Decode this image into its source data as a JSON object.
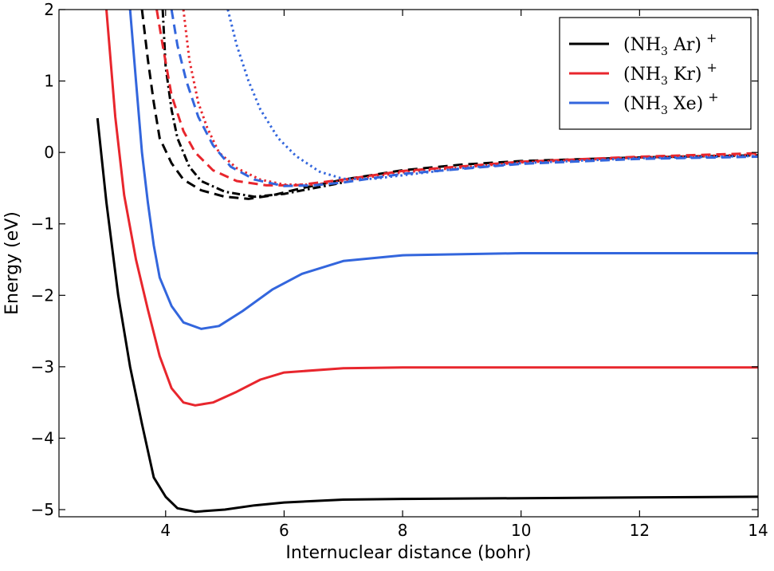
{
  "chart_data": {
    "type": "line",
    "title": "",
    "xlabel": "Internuclear distance (bohr)",
    "ylabel": "Energy (eV)",
    "xlim": [
      2.2,
      14
    ],
    "ylim": [
      -5.1,
      2
    ],
    "x_ticks": [
      4,
      6,
      8,
      10,
      12,
      14
    ],
    "x_tick_labels": [
      "4",
      "6",
      "8",
      "10",
      "12",
      "14"
    ],
    "y_ticks": [
      -5,
      -4,
      -3,
      -2,
      -1,
      0,
      1,
      2
    ],
    "y_tick_labels": [
      "−5",
      "−4",
      "−3",
      "−2",
      "−1",
      "0",
      "1",
      "2"
    ],
    "grid": false,
    "legend_position": "top-right",
    "legend": [
      {
        "pre": "(NH",
        "sub": "3",
        "mid": " Ar)",
        "sup": "+",
        "color": "#000000"
      },
      {
        "pre": "(NH",
        "sub": "3",
        "mid": " Kr)",
        "sup": "+",
        "color": "#e8262d"
      },
      {
        "pre": "(NH",
        "sub": "3",
        "mid": " Xe)",
        "sup": "+",
        "color": "#3366dd"
      }
    ],
    "series": [
      {
        "color": "#000000",
        "style": "solid",
        "points": [
          [
            2.85,
            0.48
          ],
          [
            3.0,
            -0.7
          ],
          [
            3.2,
            -2.0
          ],
          [
            3.4,
            -3.0
          ],
          [
            3.6,
            -3.8
          ],
          [
            3.8,
            -4.55
          ],
          [
            4.0,
            -4.82
          ],
          [
            4.2,
            -4.98
          ],
          [
            4.5,
            -5.03
          ],
          [
            5.0,
            -5.0
          ],
          [
            5.5,
            -4.94
          ],
          [
            6.0,
            -4.9
          ],
          [
            7.0,
            -4.86
          ],
          [
            8.0,
            -4.85
          ],
          [
            10.0,
            -4.84
          ],
          [
            12.0,
            -4.83
          ],
          [
            14.0,
            -4.82
          ]
        ]
      },
      {
        "color": "#e8262d",
        "style": "solid",
        "points": [
          [
            3.0,
            2.0
          ],
          [
            3.15,
            0.5
          ],
          [
            3.3,
            -0.6
          ],
          [
            3.5,
            -1.5
          ],
          [
            3.7,
            -2.2
          ],
          [
            3.9,
            -2.85
          ],
          [
            4.1,
            -3.3
          ],
          [
            4.3,
            -3.5
          ],
          [
            4.5,
            -3.54
          ],
          [
            4.8,
            -3.5
          ],
          [
            5.2,
            -3.35
          ],
          [
            5.6,
            -3.18
          ],
          [
            6.0,
            -3.08
          ],
          [
            7.0,
            -3.02
          ],
          [
            8.0,
            -3.01
          ],
          [
            10.0,
            -3.01
          ],
          [
            14.0,
            -3.01
          ]
        ]
      },
      {
        "color": "#3366dd",
        "style": "solid",
        "points": [
          [
            3.4,
            2.0
          ],
          [
            3.5,
            1.0
          ],
          [
            3.6,
            0.0
          ],
          [
            3.7,
            -0.7
          ],
          [
            3.8,
            -1.3
          ],
          [
            3.9,
            -1.75
          ],
          [
            4.1,
            -2.15
          ],
          [
            4.3,
            -2.38
          ],
          [
            4.6,
            -2.47
          ],
          [
            4.9,
            -2.43
          ],
          [
            5.3,
            -2.22
          ],
          [
            5.8,
            -1.92
          ],
          [
            6.3,
            -1.7
          ],
          [
            7.0,
            -1.52
          ],
          [
            8.0,
            -1.44
          ],
          [
            10.0,
            -1.41
          ],
          [
            14.0,
            -1.41
          ]
        ]
      },
      {
        "color": "#000000",
        "style": "dashed",
        "points": [
          [
            3.6,
            2.0
          ],
          [
            3.7,
            1.3
          ],
          [
            3.8,
            0.7
          ],
          [
            3.9,
            0.2
          ],
          [
            4.1,
            -0.15
          ],
          [
            4.3,
            -0.38
          ],
          [
            4.6,
            -0.53
          ],
          [
            5.0,
            -0.62
          ],
          [
            5.4,
            -0.65
          ],
          [
            5.8,
            -0.6
          ],
          [
            6.3,
            -0.5
          ],
          [
            7.0,
            -0.38
          ],
          [
            8.0,
            -0.25
          ],
          [
            9.0,
            -0.17
          ],
          [
            10.0,
            -0.12
          ],
          [
            12.0,
            -0.07
          ],
          [
            14.0,
            -0.04
          ]
        ]
      },
      {
        "color": "#000000",
        "style": "dashdot",
        "points": [
          [
            3.95,
            2.0
          ],
          [
            4.0,
            1.2
          ],
          [
            4.1,
            0.6
          ],
          [
            4.2,
            0.2
          ],
          [
            4.4,
            -0.2
          ],
          [
            4.6,
            -0.4
          ],
          [
            5.0,
            -0.55
          ],
          [
            5.5,
            -0.62
          ],
          [
            6.0,
            -0.58
          ],
          [
            6.5,
            -0.5
          ],
          [
            7.0,
            -0.42
          ]
        ]
      },
      {
        "color": "#e8262d",
        "style": "dashed",
        "points": [
          [
            3.85,
            2.0
          ],
          [
            3.95,
            1.5
          ],
          [
            4.1,
            0.8
          ],
          [
            4.3,
            0.3
          ],
          [
            4.5,
            0.0
          ],
          [
            4.8,
            -0.25
          ],
          [
            5.2,
            -0.4
          ],
          [
            5.7,
            -0.46
          ],
          [
            6.2,
            -0.46
          ],
          [
            7.0,
            -0.38
          ],
          [
            8.0,
            -0.26
          ],
          [
            10.0,
            -0.13
          ],
          [
            12.0,
            -0.06
          ],
          [
            14.0,
            -0.01
          ]
        ]
      },
      {
        "color": "#e8262d",
        "style": "dotted",
        "points": [
          [
            4.3,
            2.0
          ],
          [
            4.4,
            1.3
          ],
          [
            4.55,
            0.7
          ],
          [
            4.7,
            0.35
          ],
          [
            4.9,
            0.0
          ],
          [
            5.2,
            -0.22
          ],
          [
            5.6,
            -0.38
          ],
          [
            6.0,
            -0.45
          ],
          [
            6.5,
            -0.45
          ],
          [
            7.0,
            -0.4
          ],
          [
            8.0,
            -0.28
          ],
          [
            10.0,
            -0.14
          ],
          [
            12.0,
            -0.07
          ],
          [
            14.0,
            -0.03
          ]
        ]
      },
      {
        "color": "#3366dd",
        "style": "dashed",
        "points": [
          [
            4.1,
            2.0
          ],
          [
            4.2,
            1.5
          ],
          [
            4.35,
            1.0
          ],
          [
            4.55,
            0.5
          ],
          [
            4.8,
            0.1
          ],
          [
            5.1,
            -0.2
          ],
          [
            5.5,
            -0.38
          ],
          [
            6.0,
            -0.47
          ],
          [
            6.5,
            -0.46
          ],
          [
            7.0,
            -0.42
          ],
          [
            8.0,
            -0.3
          ],
          [
            10.0,
            -0.16
          ],
          [
            12.0,
            -0.09
          ],
          [
            14.0,
            -0.06
          ]
        ]
      },
      {
        "color": "#3366dd",
        "style": "dotted",
        "points": [
          [
            5.05,
            2.0
          ],
          [
            5.2,
            1.5
          ],
          [
            5.4,
            1.0
          ],
          [
            5.6,
            0.6
          ],
          [
            5.9,
            0.2
          ],
          [
            6.2,
            -0.05
          ],
          [
            6.6,
            -0.27
          ],
          [
            7.0,
            -0.37
          ],
          [
            7.5,
            -0.37
          ],
          [
            8.0,
            -0.32
          ],
          [
            9.0,
            -0.22
          ],
          [
            10.0,
            -0.15
          ],
          [
            12.0,
            -0.08
          ],
          [
            14.0,
            -0.05
          ]
        ]
      }
    ]
  }
}
